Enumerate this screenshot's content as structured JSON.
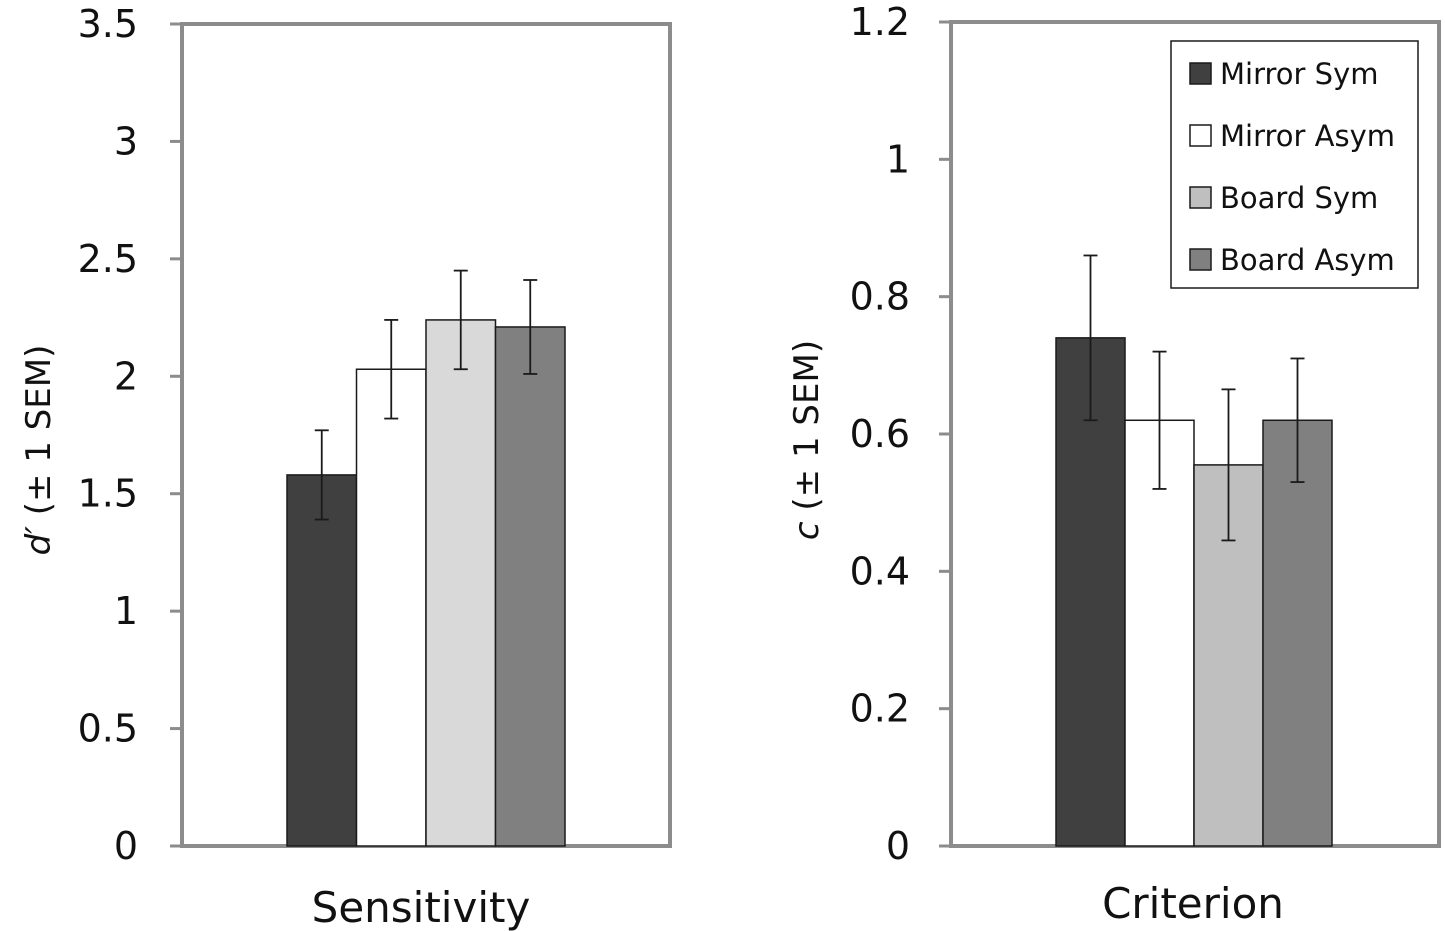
{
  "chart_data": [
    {
      "type": "bar",
      "categories": [
        "Sensitivity"
      ],
      "xlabel": "Sensitivity",
      "ylabel": {
        "symbol": "d′",
        "suffix": " (± 1 SEM)"
      },
      "ylim": [
        0,
        3.5
      ],
      "yticks": [
        "0",
        "0.5",
        "1",
        "1.5",
        "2",
        "2.5",
        "3",
        "3.5"
      ],
      "yticks_values": [
        0,
        0.5,
        1,
        1.5,
        2,
        2.5,
        3,
        3.5
      ],
      "series": [
        {
          "name": "Mirror Sym",
          "color": "#404040",
          "values": [
            1.58
          ],
          "error": [
            0.19
          ]
        },
        {
          "name": "Mirror Asym",
          "color": "#ffffff",
          "values": [
            2.03
          ],
          "error": [
            0.21
          ]
        },
        {
          "name": "Board Sym",
          "color": "#d9d9d9",
          "values": [
            2.24
          ],
          "error": [
            0.21
          ]
        },
        {
          "name": "Board Asym",
          "color": "#808080",
          "values": [
            2.21
          ],
          "error": [
            0.2
          ]
        }
      ],
      "grid": false,
      "legend": "none"
    },
    {
      "type": "bar",
      "categories": [
        "Criterion"
      ],
      "xlabel": "Criterion",
      "ylabel": {
        "symbol": "c",
        "suffix": " (± 1 SEM)"
      },
      "ylim": [
        0,
        1.2
      ],
      "yticks": [
        "0",
        "0.2",
        "0.4",
        "0.6",
        "0.8",
        "1",
        "1.2"
      ],
      "yticks_values": [
        0,
        0.2,
        0.4,
        0.6,
        0.8,
        1,
        1.2
      ],
      "series": [
        {
          "name": "Mirror Sym",
          "color": "#404040",
          "values": [
            0.74
          ],
          "error": [
            0.12
          ]
        },
        {
          "name": "Mirror Asym",
          "color": "#ffffff",
          "values": [
            0.62
          ],
          "error": [
            0.1
          ]
        },
        {
          "name": "Board Sym",
          "color": "#bfbfbf",
          "values": [
            0.555
          ],
          "error": [
            0.11
          ]
        },
        {
          "name": "Board Asym",
          "color": "#808080",
          "values": [
            0.62
          ],
          "error": [
            0.09
          ]
        }
      ],
      "grid": false,
      "legend": "top-right"
    }
  ],
  "colors": {
    "frame": "#8c8c8c",
    "bar_stroke": "#1a1a1a",
    "error_bar": "#1a1a1a"
  }
}
